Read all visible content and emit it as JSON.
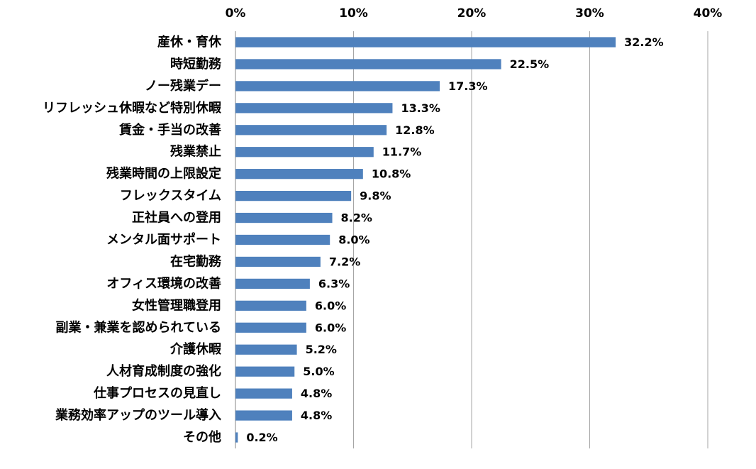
{
  "chart_data": {
    "type": "bar",
    "orientation": "horizontal",
    "title": "",
    "xlabel": "",
    "ylabel": "",
    "xlim": [
      0,
      40
    ],
    "x_ticks": [
      "0%",
      "10%",
      "20%",
      "30%",
      "40%"
    ],
    "x_tick_values": [
      0,
      10,
      20,
      30,
      40
    ],
    "grid": true,
    "legend": "none",
    "bar_color": "#4F81BD",
    "categories": [
      "産休・育休",
      "時短勤務",
      "ノー残業デー",
      "リフレッシュ休暇など特別休暇",
      "賃金・手当の改善",
      "残業禁止",
      "残業時間の上限設定",
      "フレックスタイム",
      "正社員への登用",
      "メンタル面サポート",
      "在宅勤務",
      "オフィス環境の改善",
      "女性管理職登用",
      "副業・兼業を認められている",
      "介護休暇",
      "人材育成制度の強化",
      "仕事プロセスの見直し",
      "業務効率アップのツール導入",
      "その他"
    ],
    "values": [
      32.2,
      22.5,
      17.3,
      13.3,
      12.8,
      11.7,
      10.8,
      9.8,
      8.2,
      8.0,
      7.2,
      6.3,
      6.0,
      6.0,
      5.2,
      5.0,
      4.8,
      4.8,
      0.2
    ],
    "value_labels": [
      "32.2%",
      "22.5%",
      "17.3%",
      "13.3%",
      "12.8%",
      "11.7%",
      "10.8%",
      "9.8%",
      "8.2%",
      "8.0%",
      "7.2%",
      "6.3%",
      "6.0%",
      "6.0%",
      "5.2%",
      "5.0%",
      "4.8%",
      "4.8%",
      "0.2%"
    ]
  }
}
